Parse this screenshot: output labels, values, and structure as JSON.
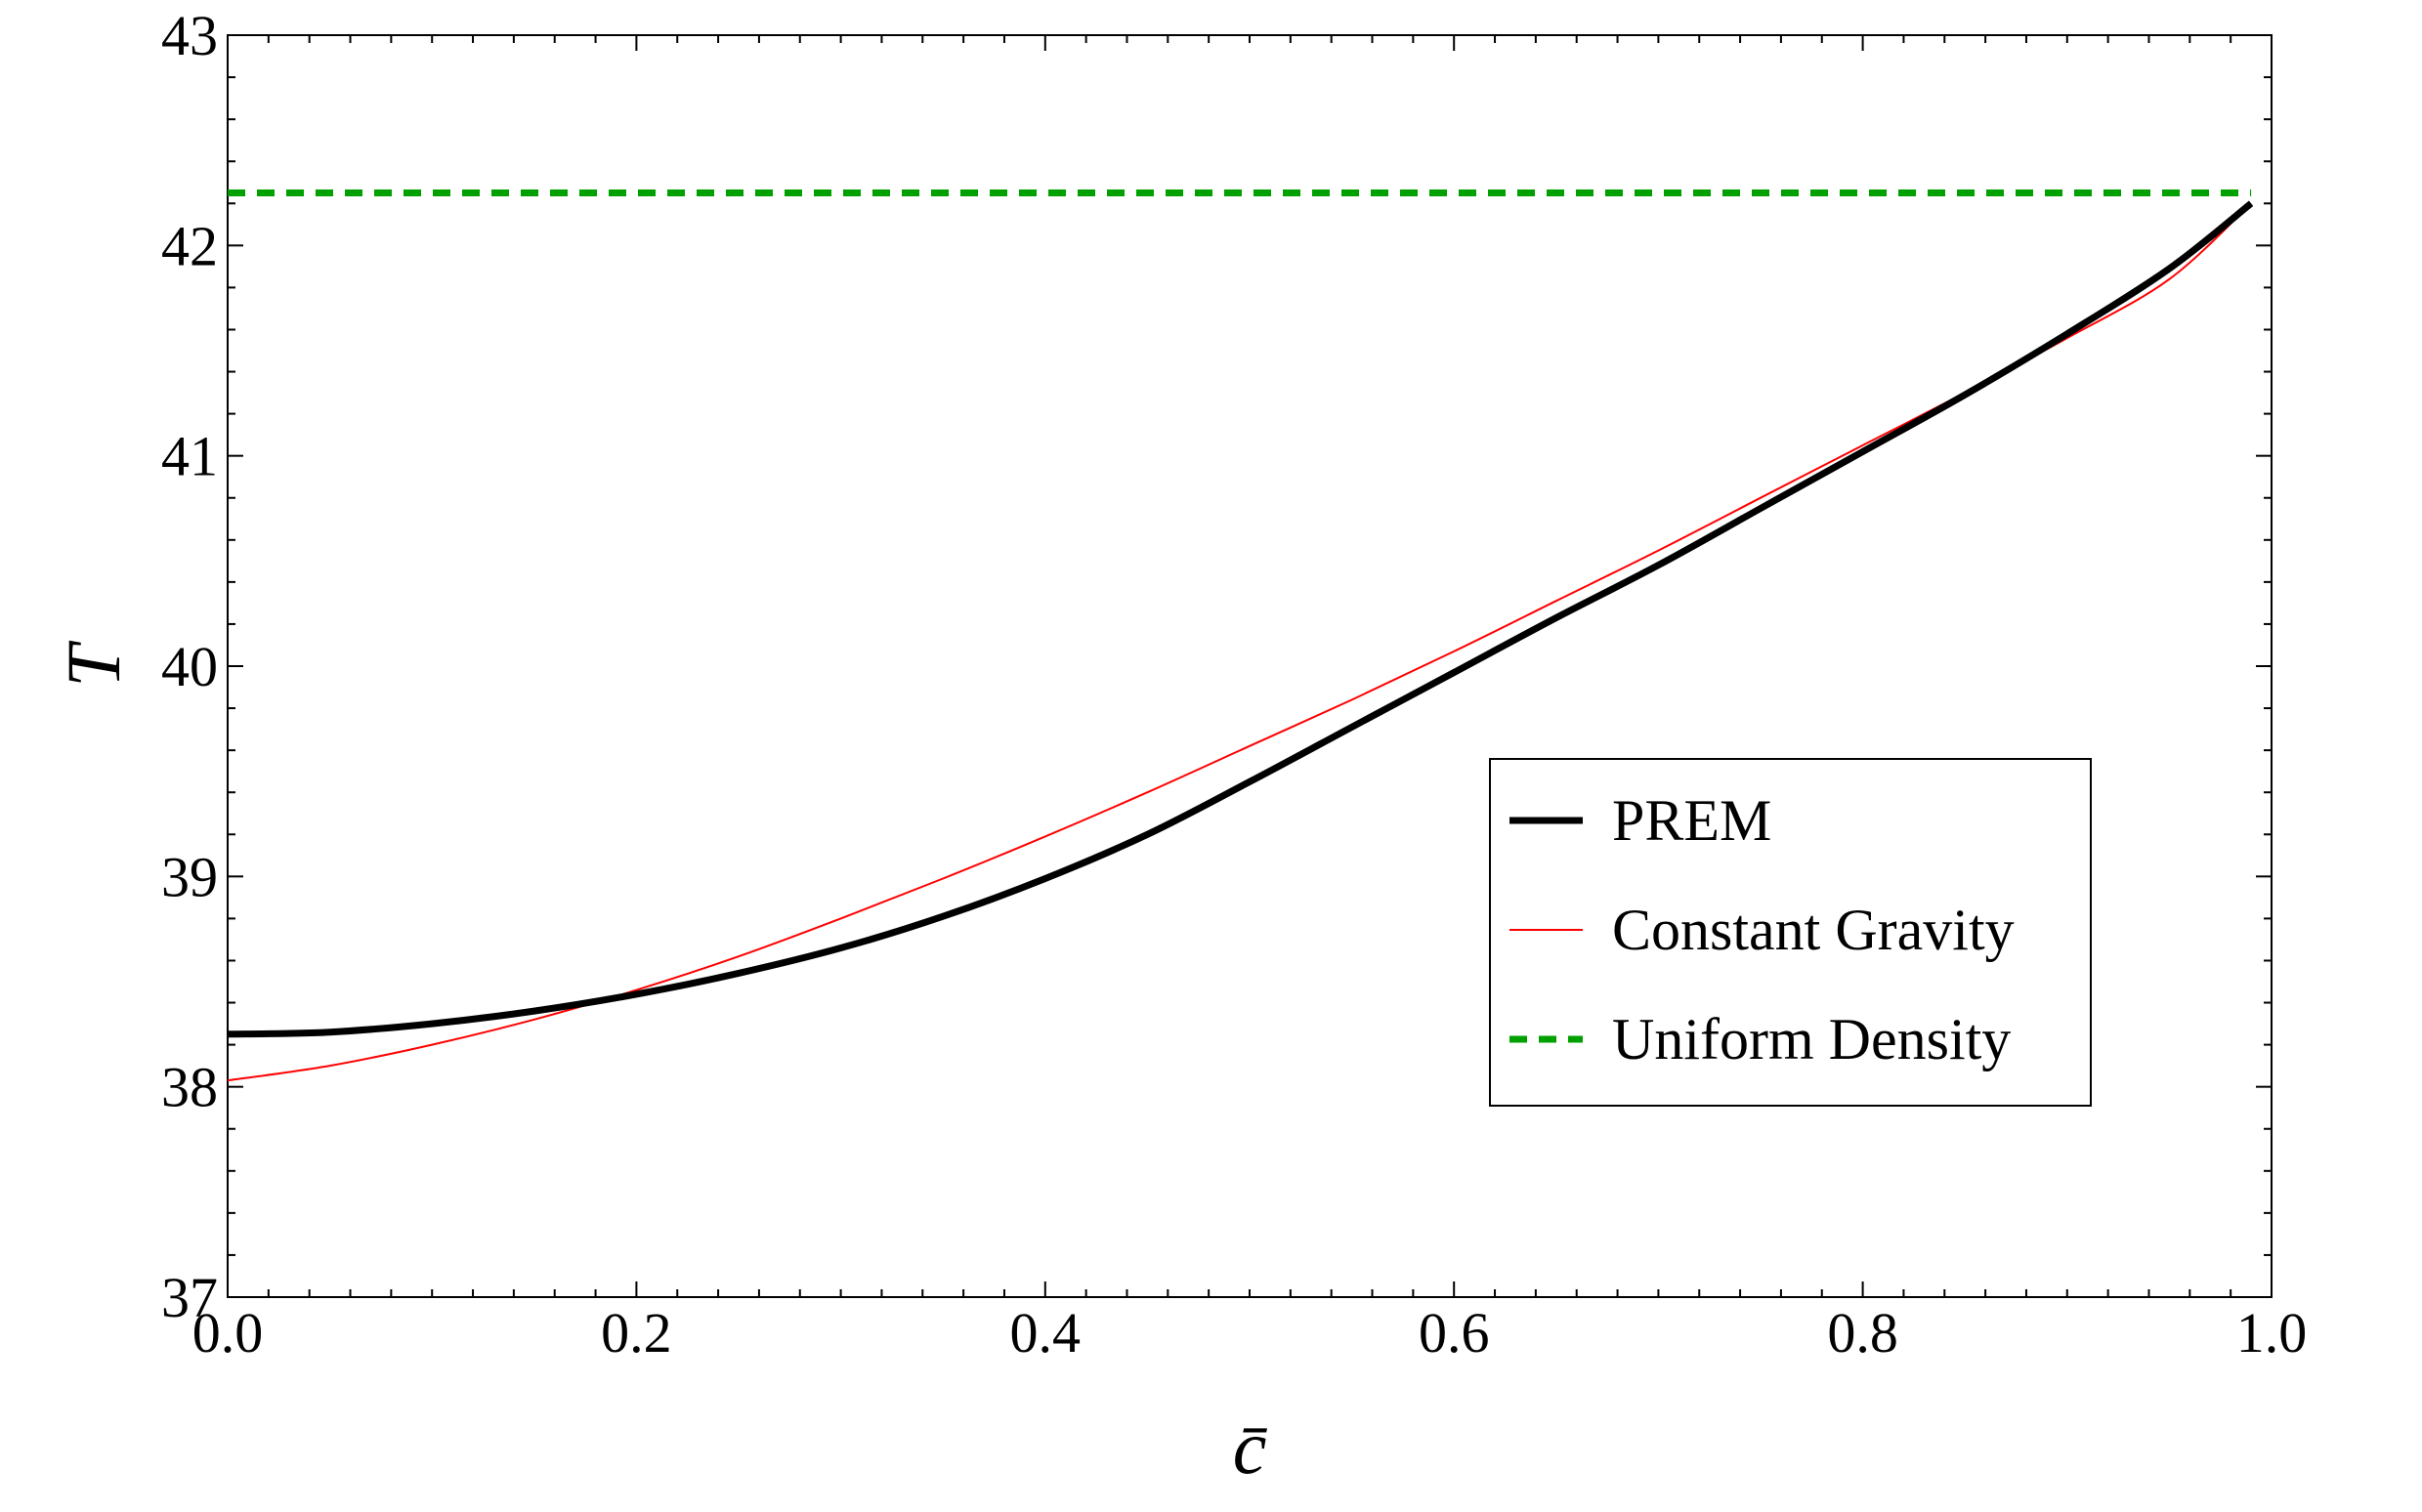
{
  "chart_data": {
    "type": "line",
    "xlabel": "c̄",
    "ylabel": "T",
    "xlim": [
      0.0,
      1.0
    ],
    "ylim": [
      37,
      43
    ],
    "x_ticks": [
      "0.0",
      "0.2",
      "0.4",
      "0.6",
      "0.8",
      "1.0"
    ],
    "y_ticks": [
      "37",
      "38",
      "39",
      "40",
      "41",
      "42",
      "43"
    ],
    "grid": false,
    "legend_position": "right-center",
    "series": [
      {
        "name": "PREM",
        "color": "#000000",
        "style": "solid-thick",
        "x": [
          0.0,
          0.05,
          0.1,
          0.15,
          0.2,
          0.25,
          0.3,
          0.35,
          0.4,
          0.45,
          0.5,
          0.55,
          0.6,
          0.65,
          0.7,
          0.75,
          0.8,
          0.85,
          0.9,
          0.95,
          0.99
        ],
        "y": [
          38.25,
          38.26,
          38.3,
          38.36,
          38.44,
          38.54,
          38.66,
          38.81,
          38.99,
          39.2,
          39.45,
          39.71,
          39.97,
          40.23,
          40.48,
          40.75,
          41.02,
          41.29,
          41.58,
          41.89,
          42.2
        ]
      },
      {
        "name": "Constant Gravity",
        "color": "#ff0000",
        "style": "solid-thin",
        "x": [
          0.0,
          0.05,
          0.1,
          0.15,
          0.2,
          0.25,
          0.3,
          0.35,
          0.4,
          0.45,
          0.5,
          0.55,
          0.6,
          0.65,
          0.7,
          0.75,
          0.8,
          0.85,
          0.9,
          0.95,
          0.99
        ],
        "y": [
          38.03,
          38.1,
          38.2,
          38.32,
          38.46,
          38.62,
          38.8,
          38.99,
          39.19,
          39.4,
          39.62,
          39.84,
          40.07,
          40.31,
          40.55,
          40.8,
          41.05,
          41.3,
          41.56,
          41.84,
          42.2
        ]
      },
      {
        "name": "Uniform Density",
        "color": "#00a000",
        "style": "dashed",
        "x": [
          0.0,
          0.99
        ],
        "y": [
          42.25,
          42.25
        ]
      }
    ]
  }
}
